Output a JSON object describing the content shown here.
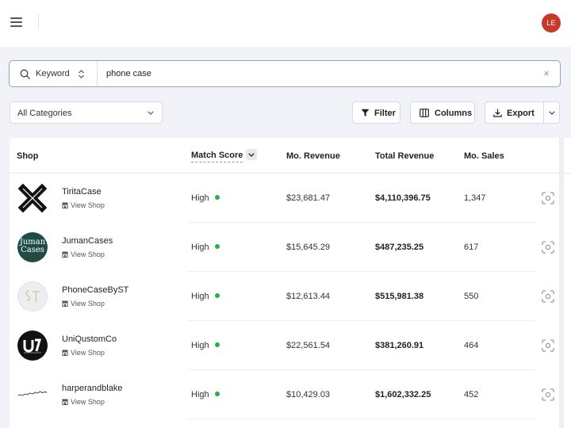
{
  "header": {
    "avatar_initials": "LE",
    "accent_color": "#c7392b"
  },
  "search": {
    "type_label": "Keyword",
    "value": "phone case",
    "placeholder": "",
    "border_color": "#8fa4c4"
  },
  "filters": {
    "category_label": "All Categories",
    "filter_label": "Filter",
    "columns_label": "Columns",
    "export_label": "Export"
  },
  "table": {
    "columns": {
      "shop": "Shop",
      "match_score": "Match Score",
      "mo_revenue": "Mo. Revenue",
      "total_revenue": "Total Revenue",
      "mo_sales": "Mo. Sales"
    },
    "view_shop_label": "View Shop",
    "status_color": "#22b24c",
    "rows": [
      {
        "shop": "TiritaCase",
        "match": "High",
        "mo_revenue": "$23,681.47",
        "total_revenue": "$4,110,396.75",
        "mo_sales": "1,347",
        "logo": "x-logo"
      },
      {
        "shop": "JumanCases",
        "match": "High",
        "mo_revenue": "$15,645.29",
        "total_revenue": "$487,235.25",
        "mo_sales": "617",
        "logo": "juman-logo",
        "logo_text": "Juman Cases"
      },
      {
        "shop": "PhoneCaseByST",
        "match": "High",
        "mo_revenue": "$12,613.44",
        "total_revenue": "$515,981.38",
        "mo_sales": "550",
        "logo": "st-logo"
      },
      {
        "shop": "UniQustomCo",
        "match": "High",
        "mo_revenue": "$22,561.54",
        "total_revenue": "$381,260.91",
        "mo_sales": "464",
        "logo": "uq-logo"
      },
      {
        "shop": "harperandblake",
        "match": "High",
        "mo_revenue": "$10,429.03",
        "total_revenue": "$1,602,332.25",
        "mo_sales": "452",
        "logo": "script-logo"
      }
    ]
  }
}
